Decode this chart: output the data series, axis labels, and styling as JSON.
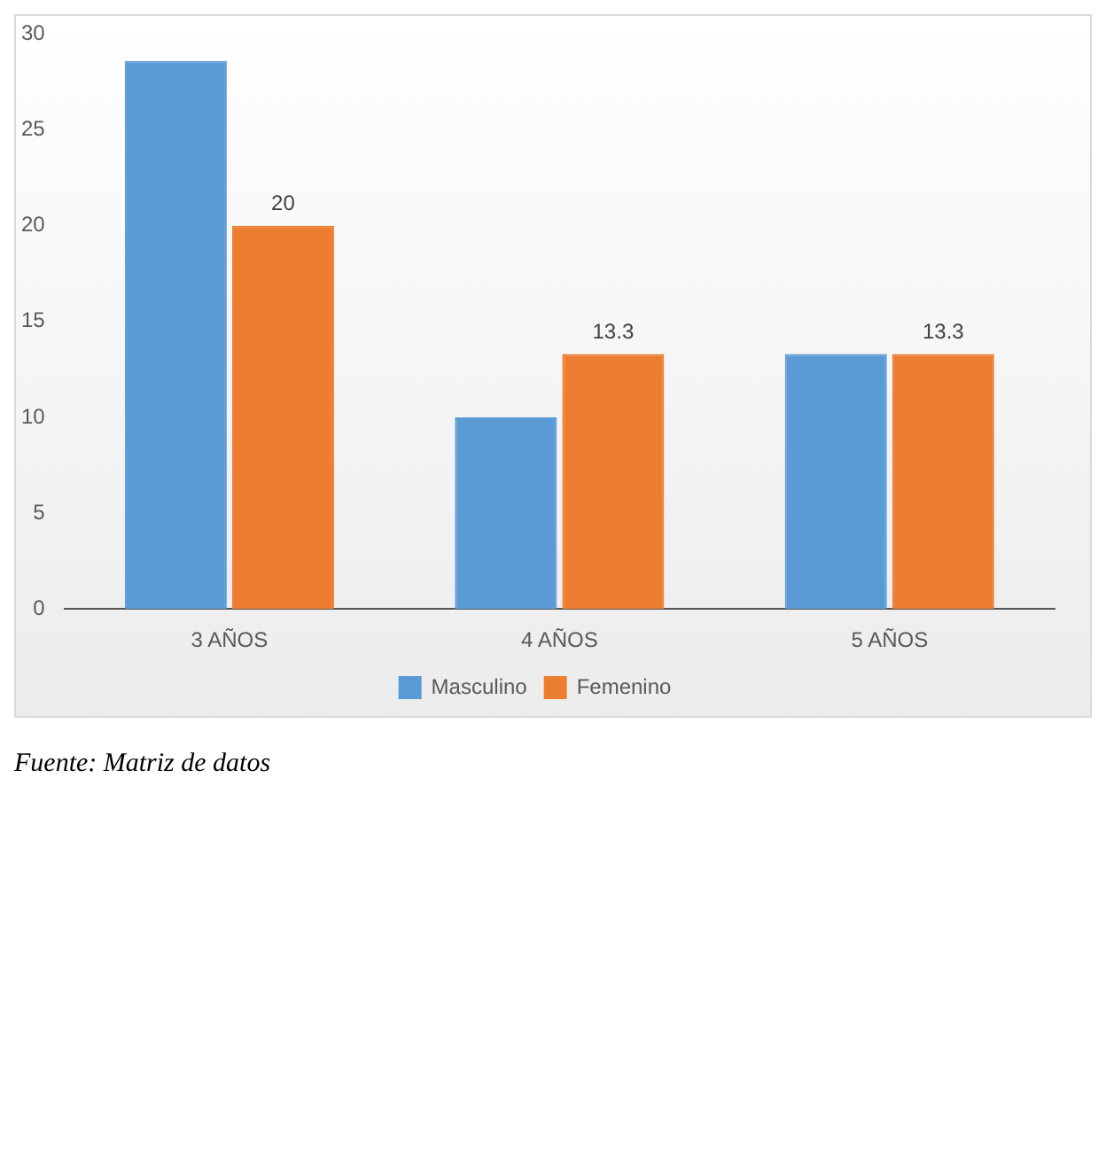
{
  "chart_data": {
    "type": "bar",
    "categories": [
      "3 AÑOS",
      "4 AÑOS",
      "5 AÑOS"
    ],
    "series": [
      {
        "name": "Masculino",
        "color": "#5b9bd5",
        "values": [
          28.6,
          10,
          13.3
        ]
      },
      {
        "name": "Femenino",
        "color": "#ed7d31",
        "values": [
          20,
          13.3,
          13.3
        ],
        "value_labels": [
          "20",
          "13.3",
          "13.3"
        ]
      }
    ],
    "ylim": [
      0,
      30
    ],
    "yticks": [
      0,
      5,
      10,
      15,
      20,
      25,
      30
    ],
    "grid": false,
    "legend": "bottom",
    "annotations": [
      "Fuente: Matriz de datos"
    ]
  }
}
